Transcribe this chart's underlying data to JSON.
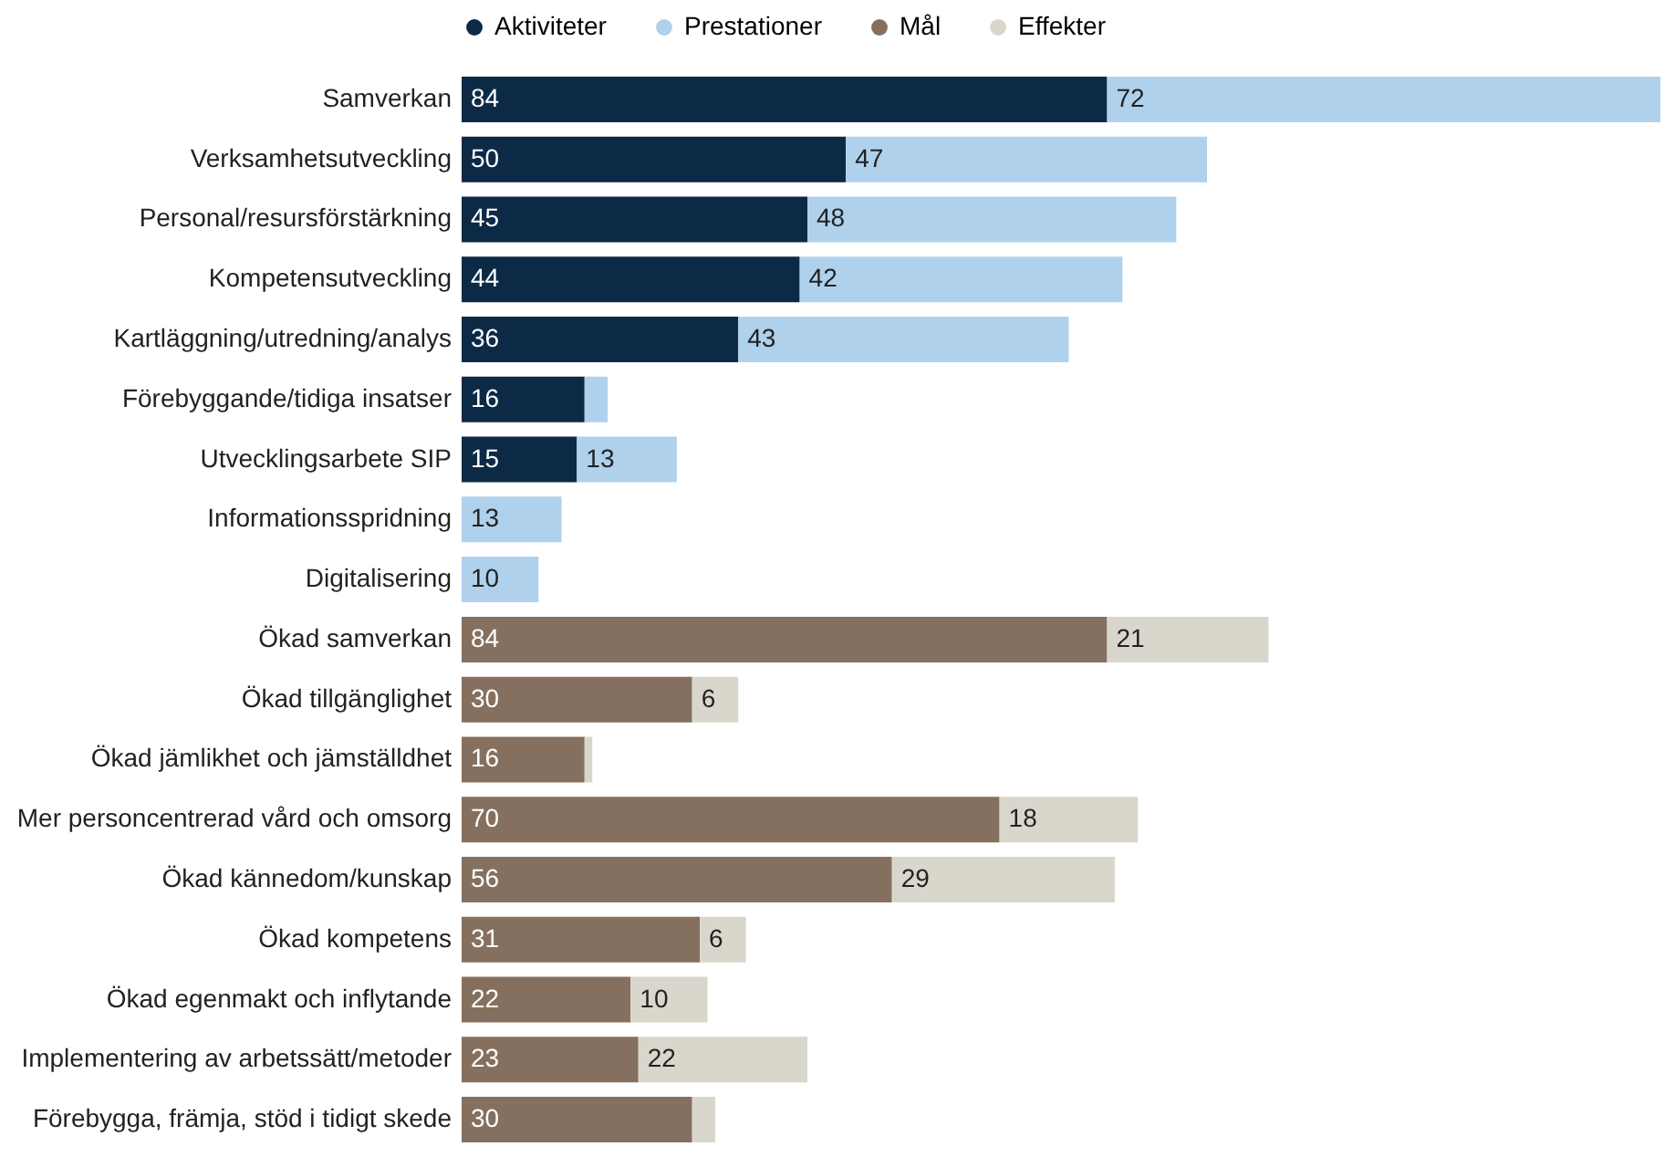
{
  "chart_data": {
    "type": "bar",
    "orientation": "horizontal",
    "stacked": true,
    "legend": "top left",
    "categories": [
      "Samverkan",
      "Verksamhetsutveckling",
      "Personal/resursförstärkning",
      "Kompetensutveckling",
      "Kartläggning/utredning/analys",
      "Förebyggande/tidiga insatser",
      "Utvecklingsarbete SIP",
      "Informationsspridning",
      "Digitalisering",
      "Ökad samverkan",
      "Ökad tillgänglighet",
      "Ökad jämlikhet och jämställdhet",
      "Mer personcentrerad vård och omsorg",
      "Ökad kännedom/kunskap",
      "Ökad kompetens",
      "Ökad egenmakt och inflytande",
      "Implementering av arbetssätt/metoder",
      "Förebygga, främja, stöd i tidigt skede"
    ],
    "series": [
      {
        "name": "Aktiviteter",
        "color": "#0c2a46",
        "values": [
          84,
          50,
          45,
          44,
          36,
          16,
          15,
          null,
          null,
          null,
          null,
          null,
          null,
          null,
          null,
          null,
          null,
          null
        ],
        "value_labels": [
          "84",
          "50",
          "45",
          "44",
          "36",
          "16",
          "15",
          null,
          null,
          null,
          null,
          null,
          null,
          null,
          null,
          null,
          null,
          null
        ]
      },
      {
        "name": "Prestationer",
        "color": "#afd1ec",
        "values": [
          72,
          47,
          48,
          42,
          43,
          3,
          13,
          13,
          10,
          null,
          null,
          null,
          null,
          null,
          null,
          null,
          null,
          null
        ],
        "value_labels": [
          "72",
          "47",
          "48",
          "42",
          "43",
          null,
          "13",
          "13",
          "10",
          null,
          null,
          null,
          null,
          null,
          null,
          null,
          null,
          null
        ]
      },
      {
        "name": "Mål",
        "color": "#85705f",
        "values": [
          null,
          null,
          null,
          null,
          null,
          null,
          null,
          null,
          null,
          84,
          30,
          16,
          70,
          56,
          31,
          22,
          23,
          30
        ],
        "value_labels": [
          null,
          null,
          null,
          null,
          null,
          null,
          null,
          null,
          null,
          "84",
          "30",
          "16",
          "70",
          "56",
          "31",
          "22",
          "23",
          "30"
        ]
      },
      {
        "name": "Effekter",
        "color": "#d9d7cc",
        "values": [
          null,
          null,
          null,
          null,
          null,
          null,
          null,
          null,
          null,
          21,
          6,
          1,
          18,
          29,
          6,
          10,
          22,
          3
        ],
        "value_labels": [
          null,
          null,
          null,
          null,
          null,
          null,
          null,
          null,
          null,
          "21",
          "6",
          null,
          "18",
          "29",
          "6",
          "10",
          "22",
          null
        ]
      }
    ]
  }
}
